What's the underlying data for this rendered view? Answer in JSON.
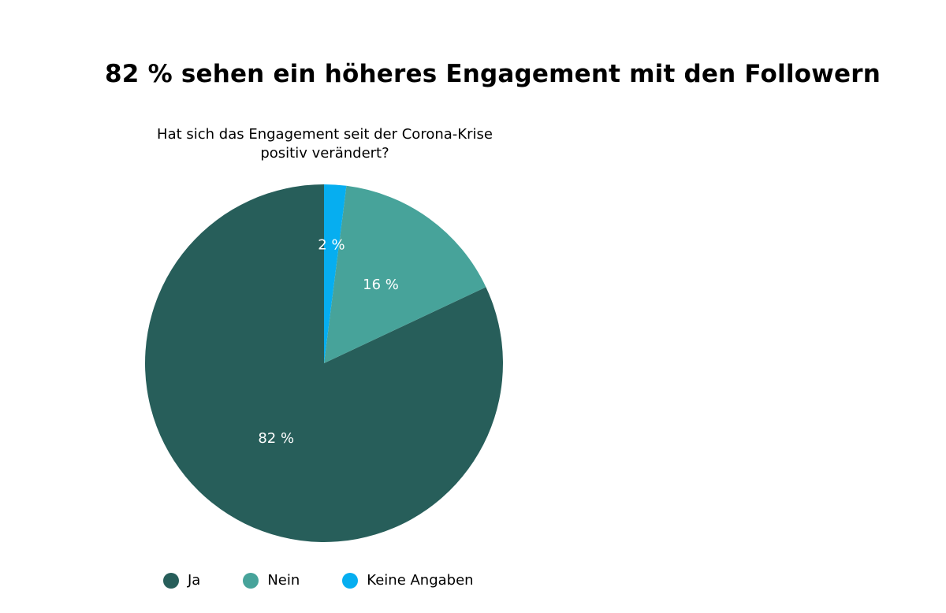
{
  "header": {
    "title": "82 % sehen ein höheres Engagement mit den Followern"
  },
  "chart_data": {
    "type": "pie",
    "title_lines": [
      "Hat sich das Engagement seit der Corona-Krise",
      "positiv verändert?"
    ],
    "slices": [
      {
        "label": "Ja",
        "value": 82,
        "value_label": "82 %",
        "color": "#275e5a"
      },
      {
        "label": "Nein",
        "value": 16,
        "value_label": "16 %",
        "color": "#47a39a"
      },
      {
        "label": "Keine Angaben",
        "value": 2,
        "value_label": "2 %",
        "color": "#06aef0"
      }
    ],
    "start": "12 o'clock",
    "direction": "clockwise",
    "legend_position": "bottom"
  }
}
